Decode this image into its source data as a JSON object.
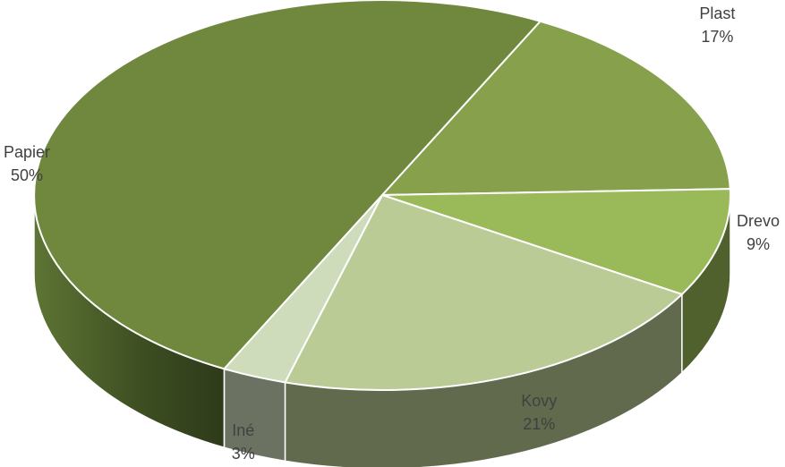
{
  "chart_data": {
    "type": "pie",
    "title": "",
    "series": [
      {
        "name": "",
        "categories": [
          "Plast",
          "Drevo",
          "Kovy",
          "Iné",
          "Papier"
        ],
        "values": [
          17,
          9,
          21,
          3,
          50
        ],
        "labels": [
          "17%",
          "9%",
          "21%",
          "3%",
          "50%"
        ]
      }
    ],
    "colors": [
      "#86a04b",
      "#9aba59",
      "#bacb95",
      "#cfdcbc",
      "#6f883e"
    ],
    "legend": "none",
    "style": "3d"
  }
}
